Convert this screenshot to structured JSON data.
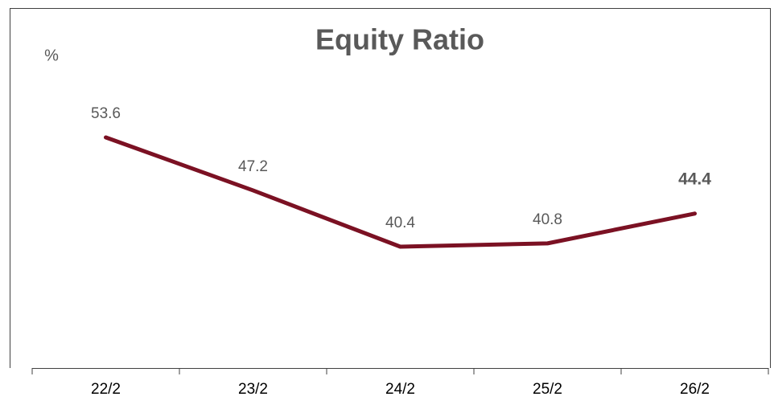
{
  "chart_data": {
    "type": "line",
    "title": "Equity Ratio",
    "y_label": "%",
    "categories": [
      "22/2",
      "23/2",
      "24/2",
      "25/2",
      "26/2"
    ],
    "values": [
      53.6,
      47.2,
      40.4,
      40.8,
      44.4
    ],
    "color": "#7b1123"
  }
}
